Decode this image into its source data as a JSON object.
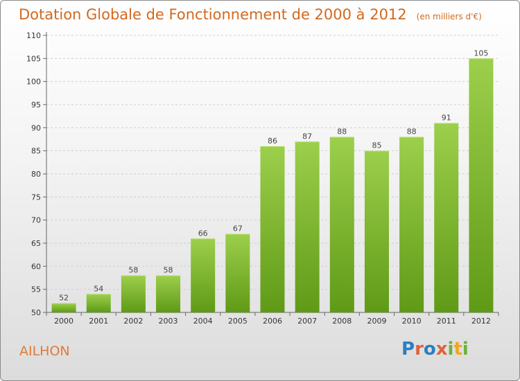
{
  "title": "Dotation Globale de Fonctionnement de 2000 à 2012",
  "subtitle": "(en milliers d'€)",
  "commune": "AILHON",
  "logo": "Proxiti",
  "colors": {
    "title": "#d2691e",
    "bar_light": "#9ccf4c",
    "bar_dark": "#5f9a16",
    "axis": "#666666",
    "grid": "#cfcfcf"
  },
  "chart_data": {
    "type": "bar",
    "categories": [
      "2000",
      "2001",
      "2002",
      "2003",
      "2004",
      "2005",
      "2006",
      "2007",
      "2008",
      "2009",
      "2010",
      "2011",
      "2012"
    ],
    "values": [
      52,
      54,
      58,
      58,
      66,
      67,
      86,
      87,
      88,
      85,
      88,
      91,
      105
    ],
    "title": "Dotation Globale de Fonctionnement de 2000 à 2012",
    "xlabel": "",
    "ylabel": "",
    "ylim": [
      50,
      110
    ],
    "yticks": [
      50,
      55,
      60,
      65,
      70,
      75,
      80,
      85,
      90,
      95,
      100,
      105,
      110
    ],
    "grid": true
  }
}
